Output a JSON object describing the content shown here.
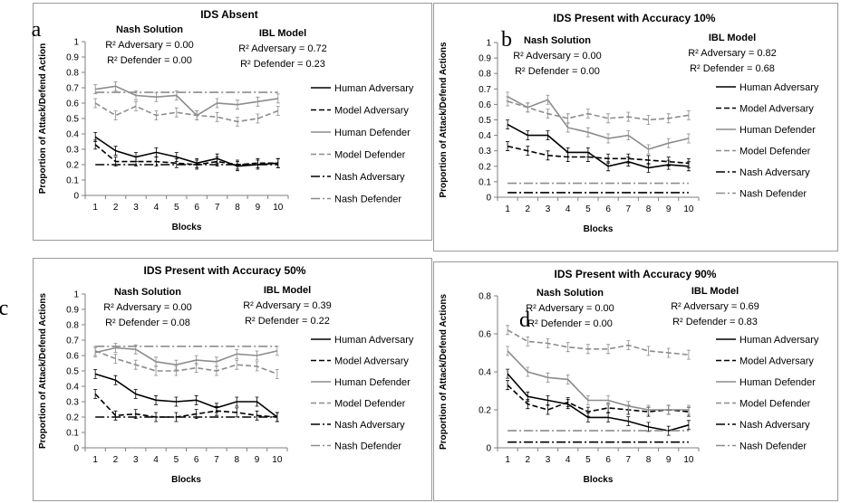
{
  "chart_data": [
    {
      "type": "line",
      "letter": "a",
      "title": "IDS Absent",
      "xlabel": "Blocks",
      "ylabel": "Proportion of Attack/Defend Action",
      "x": [
        1,
        2,
        3,
        4,
        5,
        6,
        7,
        8,
        9,
        10
      ],
      "ylim": [
        0,
        1
      ],
      "yticks": [
        "0",
        "0.1",
        "0.2",
        "0.3",
        "0.4",
        "0.5",
        "0.6",
        "0.7",
        "0.8",
        "0.9",
        "1"
      ],
      "xticks": [
        "1",
        "2",
        "3",
        "4",
        "5",
        "6",
        "7",
        "8",
        "9",
        "10"
      ],
      "annotations": {
        "nash_title": "Nash Solution",
        "nash_line1": "R² Adversary = 0.00",
        "nash_line2": "R² Defender = 0.00",
        "ibl_title": "IBL Model",
        "ibl_line1": "R² Adversary = 0.72",
        "ibl_line2": "R² Defender = 0.23"
      },
      "series": [
        {
          "name": "Human Adversary",
          "values": [
            0.38,
            0.29,
            0.25,
            0.28,
            0.25,
            0.21,
            0.24,
            0.19,
            0.2,
            0.21
          ]
        },
        {
          "name": "Model Adversary",
          "values": [
            0.33,
            0.22,
            0.22,
            0.22,
            0.21,
            0.2,
            0.22,
            0.2,
            0.21,
            0.21
          ]
        },
        {
          "name": "Human Defender",
          "values": [
            0.69,
            0.71,
            0.65,
            0.64,
            0.65,
            0.52,
            0.6,
            0.59,
            0.61,
            0.63
          ]
        },
        {
          "name": "Model Defender",
          "values": [
            0.6,
            0.52,
            0.58,
            0.52,
            0.54,
            0.52,
            0.51,
            0.48,
            0.5,
            0.55
          ]
        },
        {
          "name": "Nash Adversary",
          "values": [
            0.2,
            0.2,
            0.2,
            0.2,
            0.2,
            0.2,
            0.2,
            0.2,
            0.2,
            0.2
          ]
        },
        {
          "name": "Nash Defender",
          "values": [
            0.67,
            0.67,
            0.67,
            0.67,
            0.67,
            0.67,
            0.67,
            0.67,
            0.67,
            0.67
          ]
        }
      ]
    },
    {
      "type": "line",
      "letter": "b",
      "title": "IDS Present with Accuracy 10%",
      "xlabel": "Blocks",
      "ylabel": "Proportion of Attack/Defend Actions",
      "x": [
        1,
        2,
        3,
        4,
        5,
        6,
        7,
        8,
        9,
        10
      ],
      "ylim": [
        0,
        1
      ],
      "yticks": [
        "0",
        "0.1",
        "0.2",
        "0.3",
        "0.4",
        "0.5",
        "0.6",
        "0.7",
        "0.8",
        "0.9",
        "1"
      ],
      "xticks": [
        "1",
        "2",
        "3",
        "4",
        "5",
        "6",
        "7",
        "8",
        "9",
        "10"
      ],
      "annotations": {
        "nash_title": "Nash Solution",
        "nash_line1": "R² Adversary = 0.00",
        "nash_line2": "R² Defender = 0.00",
        "ibl_title": "IBL Model",
        "ibl_line1": "R² Adversary = 0.82",
        "ibl_line2": "R² Defender = 0.68"
      },
      "series": [
        {
          "name": "Human Adversary",
          "values": [
            0.47,
            0.4,
            0.4,
            0.29,
            0.29,
            0.2,
            0.23,
            0.19,
            0.21,
            0.2
          ]
        },
        {
          "name": "Model Adversary",
          "values": [
            0.33,
            0.3,
            0.27,
            0.26,
            0.26,
            0.25,
            0.25,
            0.24,
            0.23,
            0.22
          ]
        },
        {
          "name": "Human Defender",
          "values": [
            0.65,
            0.58,
            0.63,
            0.45,
            0.42,
            0.38,
            0.4,
            0.31,
            0.35,
            0.38
          ]
        },
        {
          "name": "Model Defender",
          "values": [
            0.62,
            0.58,
            0.54,
            0.51,
            0.54,
            0.51,
            0.52,
            0.5,
            0.51,
            0.53
          ]
        },
        {
          "name": "Nash Adversary",
          "values": [
            0.03,
            0.03,
            0.03,
            0.03,
            0.03,
            0.03,
            0.03,
            0.03,
            0.03,
            0.03
          ]
        },
        {
          "name": "Nash Defender",
          "values": [
            0.09,
            0.09,
            0.09,
            0.09,
            0.09,
            0.09,
            0.09,
            0.09,
            0.09,
            0.09
          ]
        }
      ]
    },
    {
      "type": "line",
      "letter": "c",
      "title": "IDS Present with Accuracy 50%",
      "xlabel": "Blocks",
      "ylabel": "Proportion of Attack/Defend Actions",
      "x": [
        1,
        2,
        3,
        4,
        5,
        6,
        7,
        8,
        9,
        10
      ],
      "ylim": [
        0,
        1
      ],
      "yticks": [
        "0",
        "0.1",
        "0.2",
        "0.3",
        "0.4",
        "0.5",
        "0.6",
        "0.7",
        "0.8",
        "0.9",
        "1"
      ],
      "xticks": [
        "1",
        "2",
        "3",
        "4",
        "5",
        "6",
        "7",
        "8",
        "9",
        "10"
      ],
      "annotations": {
        "nash_title": "Nash Solution",
        "nash_line1": "R² Adversary = 0.00",
        "nash_line2": "R² Defender = 0.08",
        "ibl_title": "IBL Model",
        "ibl_line1": "R² Adversary = 0.39",
        "ibl_line2": "R² Defender = 0.22"
      },
      "series": [
        {
          "name": "Human Adversary",
          "values": [
            0.48,
            0.44,
            0.35,
            0.31,
            0.3,
            0.31,
            0.26,
            0.3,
            0.3,
            0.2
          ]
        },
        {
          "name": "Model Adversary",
          "values": [
            0.35,
            0.21,
            0.22,
            0.2,
            0.2,
            0.22,
            0.24,
            0.23,
            0.21,
            0.2
          ]
        },
        {
          "name": "Human Defender",
          "values": [
            0.62,
            0.65,
            0.64,
            0.56,
            0.54,
            0.57,
            0.56,
            0.61,
            0.6,
            0.63
          ]
        },
        {
          "name": "Model Defender",
          "values": [
            0.63,
            0.58,
            0.54,
            0.5,
            0.5,
            0.52,
            0.5,
            0.54,
            0.53,
            0.48
          ]
        },
        {
          "name": "Nash Adversary",
          "values": [
            0.2,
            0.2,
            0.2,
            0.2,
            0.2,
            0.2,
            0.2,
            0.2,
            0.2,
            0.2
          ]
        },
        {
          "name": "Nash Defender",
          "values": [
            0.66,
            0.66,
            0.66,
            0.66,
            0.66,
            0.66,
            0.66,
            0.66,
            0.66,
            0.66
          ]
        }
      ]
    },
    {
      "type": "line",
      "letter": "d",
      "title": "IDS Present with Accuracy 90%",
      "xlabel": "Blocks",
      "ylabel": "Proportion of Attack/Defend Actions",
      "x": [
        1,
        2,
        3,
        4,
        5,
        6,
        7,
        8,
        9,
        10
      ],
      "ylim": [
        0,
        0.8
      ],
      "yticks": [
        "0",
        "0.2",
        "0.4",
        "0.6",
        "0.8"
      ],
      "xticks": [
        "1",
        "2",
        "3",
        "4",
        "5",
        "6",
        "7",
        "8",
        "9",
        "10"
      ],
      "annotations": {
        "nash_title": "Nash Solution",
        "nash_line1": "R² Adversary = 0.00",
        "nash_line2": "R² Defender = 0.00",
        "ibl_title": "IBL Model",
        "ibl_line1": "R² Adversary = 0.69",
        "ibl_line2": "R² Defender = 0.83"
      },
      "series": [
        {
          "name": "Human Adversary",
          "values": [
            0.39,
            0.27,
            0.25,
            0.23,
            0.16,
            0.16,
            0.14,
            0.11,
            0.09,
            0.12
          ]
        },
        {
          "name": "Model Adversary",
          "values": [
            0.33,
            0.23,
            0.2,
            0.24,
            0.19,
            0.21,
            0.2,
            0.19,
            0.2,
            0.19
          ]
        },
        {
          "name": "Human Defender",
          "values": [
            0.51,
            0.4,
            0.37,
            0.36,
            0.25,
            0.25,
            0.22,
            0.2,
            0.2,
            0.2
          ]
        },
        {
          "name": "Model Defender",
          "values": [
            0.62,
            0.56,
            0.55,
            0.53,
            0.52,
            0.52,
            0.54,
            0.51,
            0.5,
            0.49
          ]
        },
        {
          "name": "Nash Adversary",
          "values": [
            0.03,
            0.03,
            0.03,
            0.03,
            0.03,
            0.03,
            0.03,
            0.03,
            0.03,
            0.03
          ]
        },
        {
          "name": "Nash Defender",
          "values": [
            0.09,
            0.09,
            0.09,
            0.09,
            0.09,
            0.09,
            0.09,
            0.09,
            0.09,
            0.09
          ]
        }
      ]
    }
  ],
  "series_styles": [
    {
      "color": "#000000",
      "dash": "solid"
    },
    {
      "color": "#000000",
      "dash": "dash"
    },
    {
      "color": "#8c8c8c",
      "dash": "solid"
    },
    {
      "color": "#8c8c8c",
      "dash": "dash"
    },
    {
      "color": "#000000",
      "dash": "dashdot"
    },
    {
      "color": "#8c8c8c",
      "dash": "dashdot"
    }
  ]
}
